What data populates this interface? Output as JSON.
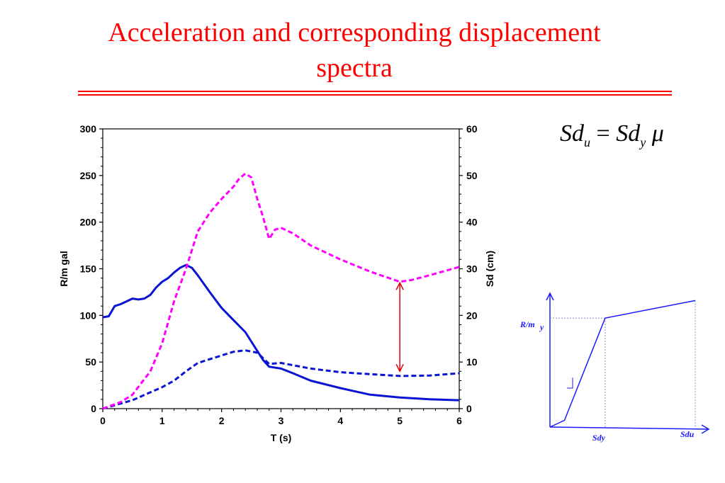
{
  "title_line1": "Acceleration and corresponding displacement",
  "title_line2": "spectra",
  "formula": {
    "lhs": "Sd",
    "lhs_sub": "u",
    "eq": "=",
    "rhs": "Sd",
    "rhs_sub": "y",
    "mu": "μ"
  },
  "colors": {
    "title": "#ff0000",
    "blue": "#0a14d2",
    "magenta": "#ff00ff",
    "arrow": "#e00000"
  },
  "chart_data": [
    {
      "type": "line",
      "xlabel": "T (s)",
      "ylabel": "R/m gal",
      "y2label": "Sd (cm)",
      "xlim": [
        0,
        6
      ],
      "ylim": [
        0,
        300
      ],
      "y2lim": [
        0,
        60
      ],
      "xticks": [
        "0",
        "1",
        "2",
        "3",
        "4",
        "5",
        "6"
      ],
      "yticks": [
        "0",
        "50",
        "100",
        "150",
        "200",
        "250",
        "300"
      ],
      "y2ticks": [
        "0",
        "10",
        "20",
        "30",
        "40",
        "50",
        "60"
      ],
      "series": [
        {
          "axis": "left",
          "style": "solid",
          "color": "#0a14d2",
          "x": [
            0,
            0.1,
            0.2,
            0.3,
            0.4,
            0.5,
            0.6,
            0.7,
            0.8,
            0.9,
            1.0,
            1.1,
            1.2,
            1.3,
            1.4,
            1.5,
            1.6,
            1.8,
            2.0,
            2.2,
            2.4,
            2.6,
            2.7,
            2.8,
            3.0,
            3.2,
            3.5,
            4.0,
            4.5,
            5.0,
            5.5,
            6.0
          ],
          "y": [
            98,
            99,
            110,
            112,
            115,
            118,
            117,
            118,
            122,
            130,
            136,
            140,
            146,
            151,
            154,
            151,
            143,
            125,
            108,
            95,
            82,
            62,
            52,
            45,
            43,
            38,
            30,
            22,
            15,
            12,
            10,
            9
          ]
        },
        {
          "axis": "right",
          "style": "dashed",
          "color": "#0a14d2",
          "x": [
            0,
            0.5,
            0.8,
            1.0,
            1.2,
            1.4,
            1.6,
            1.8,
            2.0,
            2.2,
            2.4,
            2.6,
            2.8,
            3.0,
            3.5,
            4.0,
            4.5,
            5.0,
            5.5,
            6.0
          ],
          "y": [
            0,
            1.8,
            3.5,
            4.6,
            6.0,
            8.0,
            9.8,
            10.6,
            11.4,
            12.2,
            12.5,
            12.0,
            9.6,
            9.8,
            8.6,
            7.8,
            7.4,
            7.0,
            7.1,
            7.6
          ]
        },
        {
          "axis": "left",
          "style": "dashed",
          "color": "#ff00ff",
          "x": [
            0,
            0.3,
            0.5,
            0.8,
            1.0,
            1.2,
            1.4,
            1.6,
            1.8,
            2.0,
            2.2,
            2.3,
            2.4,
            2.5,
            2.6,
            2.7,
            2.8,
            2.9,
            3.0,
            3.2,
            3.5,
            4.0,
            4.5,
            5.0,
            5.2,
            5.5,
            6.0
          ],
          "y": [
            0,
            7,
            15,
            40,
            70,
            115,
            150,
            190,
            210,
            225,
            238,
            247,
            252,
            248,
            225,
            205,
            182,
            192,
            194,
            188,
            175,
            160,
            147,
            136,
            138,
            143,
            152
          ]
        }
      ],
      "annotation": {
        "type": "double-arrow",
        "x": 5,
        "y_from": 40,
        "y_to": 135,
        "color": "#e00000"
      }
    },
    {
      "type": "line",
      "xlabel": "Sdy",
      "xlabel2": "Sdu",
      "ylabel": "R/m",
      "ylabel_sub": "y",
      "series": [
        {
          "style": "solid",
          "color": "#1a1aff",
          "x": [
            0,
            0.1,
            0.38,
            1.0
          ],
          "y": [
            0,
            0.05,
            0.81,
            0.94
          ]
        }
      ]
    }
  ]
}
